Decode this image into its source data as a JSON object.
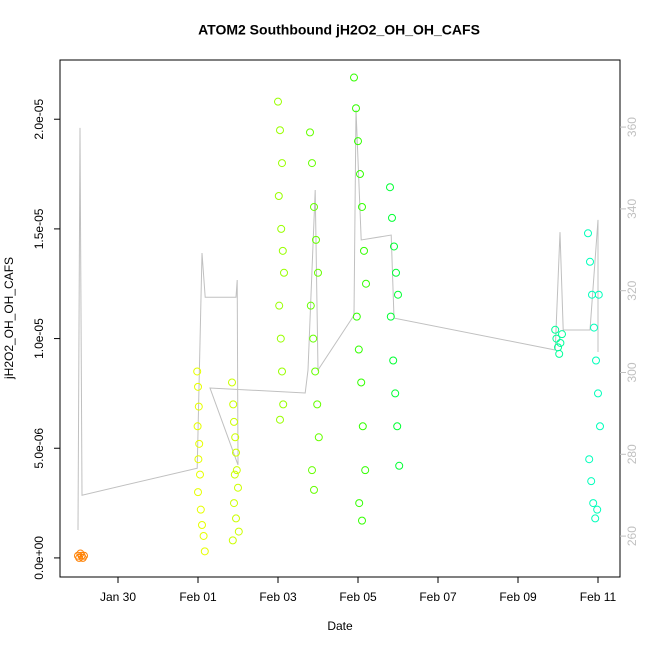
{
  "chart_data": {
    "type": "scatter",
    "title": "ATOM2 Southbound jH2O2_OH_OH_CAFS",
    "x_label": "Date",
    "y_label": "jH2O2_OH_OH_CAFS",
    "xlim": [
      28.55,
      42.55
    ],
    "xticks": [
      {
        "value": 30,
        "label": "Jan 30"
      },
      {
        "value": 32,
        "label": "Feb 01"
      },
      {
        "value": 34,
        "label": "Feb 03"
      },
      {
        "value": 36,
        "label": "Feb 05"
      },
      {
        "value": 38,
        "label": "Feb 07"
      },
      {
        "value": 40,
        "label": "Feb 09"
      },
      {
        "value": 42,
        "label": "Feb 11"
      }
    ],
    "ylim": [
      -8.7e-07,
      2.27e-05
    ],
    "yticks": [
      {
        "value": 0,
        "label": "0.0e+00"
      },
      {
        "value": 5e-06,
        "label": "5.0e-06"
      },
      {
        "value": 1e-05,
        "label": "1.0e-05"
      },
      {
        "value": 1.5e-05,
        "label": "1.5e-05"
      },
      {
        "value": 2e-05,
        "label": "2.0e-05"
      }
    ],
    "y2lim": [
      250,
      376.4
    ],
    "y2ticks": [
      260,
      280,
      300,
      320,
      340,
      360
    ],
    "series": [
      {
        "type": "line",
        "axis": "y2",
        "color": "#c0c0c0",
        "x": [
          29.0,
          29.05,
          29.1,
          31.98,
          32.1,
          32.18,
          32.95,
          32.98,
          33.0,
          32.3,
          34.68,
          34.75,
          34.93,
          35.0,
          35.9,
          35.95,
          36.08,
          36.83,
          36.9,
          40.93,
          41.05,
          41.13,
          41.8,
          42.0,
          42.0
        ],
        "values": [
          261.5,
          359.8,
          270.0,
          276.6,
          329.2,
          318.4,
          318.4,
          322.6,
          277.4,
          296.2,
          295.0,
          300.6,
          344.6,
          300.6,
          314.0,
          364.2,
          332.4,
          333.6,
          313.3,
          305.5,
          334.3,
          310.4,
          310.4,
          337.3,
          305.0
        ]
      },
      {
        "color": "#ff8000",
        "x": [
          29.0,
          29.03,
          29.06,
          29.09,
          29.12,
          29.15
        ],
        "values": [
          1e-07,
          0,
          2e-07,
          1e-07,
          0,
          1e-07
        ]
      },
      {
        "color": "#e6ff00",
        "x": [
          31.98,
          32.0,
          32.02,
          31.99,
          32.03,
          32.01,
          32.05,
          32.0,
          32.07,
          32.1,
          32.14,
          32.17
        ],
        "values": [
          8.5e-06,
          7.8e-06,
          6.9e-06,
          6e-06,
          5.2e-06,
          4.5e-06,
          3.8e-06,
          3e-06,
          2.2e-06,
          1.5e-06,
          1e-06,
          3e-07
        ]
      },
      {
        "color": "#ccff00",
        "x": [
          32.85,
          32.88,
          32.9,
          32.93,
          32.95,
          32.97,
          33.0,
          32.9,
          32.95,
          33.02,
          32.87,
          32.92
        ],
        "values": [
          8e-06,
          7e-06,
          6.2e-06,
          5.5e-06,
          4.8e-06,
          4e-06,
          3.2e-06,
          2.5e-06,
          1.8e-06,
          1.2e-06,
          8e-07,
          3.8e-06
        ]
      },
      {
        "color": "#99ff00",
        "x": [
          34.0,
          34.05,
          34.1,
          34.02,
          34.08,
          34.12,
          34.15,
          34.03,
          34.07,
          34.1,
          34.13,
          34.05
        ],
        "values": [
          2.08e-05,
          1.95e-05,
          1.8e-05,
          1.65e-05,
          1.5e-05,
          1.4e-05,
          1.3e-05,
          1.15e-05,
          1e-05,
          8.5e-06,
          7e-06,
          6.3e-06
        ]
      },
      {
        "color": "#66ff00",
        "x": [
          34.8,
          34.85,
          34.9,
          34.95,
          35.0,
          34.82,
          34.88,
          34.93,
          34.98,
          35.02,
          34.85,
          34.9
        ],
        "values": [
          1.94e-05,
          1.8e-05,
          1.6e-05,
          1.45e-05,
          1.3e-05,
          1.15e-05,
          1e-05,
          8.5e-06,
          7e-06,
          5.5e-06,
          4e-06,
          3.1e-06
        ]
      },
      {
        "color": "#33ff00",
        "x": [
          35.9,
          35.95,
          36.0,
          36.05,
          36.1,
          36.15,
          36.2,
          35.97,
          36.02,
          36.08,
          36.12,
          36.18,
          36.03,
          36.1
        ],
        "values": [
          2.19e-05,
          2.05e-05,
          1.9e-05,
          1.75e-05,
          1.6e-05,
          1.4e-05,
          1.25e-05,
          1.1e-05,
          9.5e-06,
          8e-06,
          6e-06,
          4e-06,
          2.5e-06,
          1.7e-06
        ]
      },
      {
        "color": "#00ff33",
        "x": [
          36.8,
          36.85,
          36.9,
          36.95,
          37.0,
          36.82,
          36.88,
          36.93,
          36.98,
          37.03
        ],
        "values": [
          1.69e-05,
          1.55e-05,
          1.42e-05,
          1.3e-05,
          1.2e-05,
          1.1e-05,
          9e-06,
          7.5e-06,
          6e-06,
          4.2e-06
        ]
      },
      {
        "color": "#00ff99",
        "x": [
          40.93,
          40.96,
          41.0,
          41.03,
          41.06,
          41.1
        ],
        "values": [
          1.04e-05,
          1e-05,
          9.6e-06,
          9.3e-06,
          9.8e-06,
          1.02e-05
        ]
      },
      {
        "color": "#00ffbb",
        "x": [
          41.75,
          41.8,
          41.85,
          41.9,
          41.95,
          42.0,
          42.05,
          41.78,
          41.83,
          41.88,
          41.93,
          41.98,
          42.02
        ],
        "values": [
          1.48e-05,
          1.35e-05,
          1.2e-05,
          1.05e-05,
          9e-06,
          7.5e-06,
          6e-06,
          4.5e-06,
          3.5e-06,
          2.5e-06,
          1.8e-06,
          2.2e-06,
          1.2e-05
        ]
      }
    ]
  }
}
